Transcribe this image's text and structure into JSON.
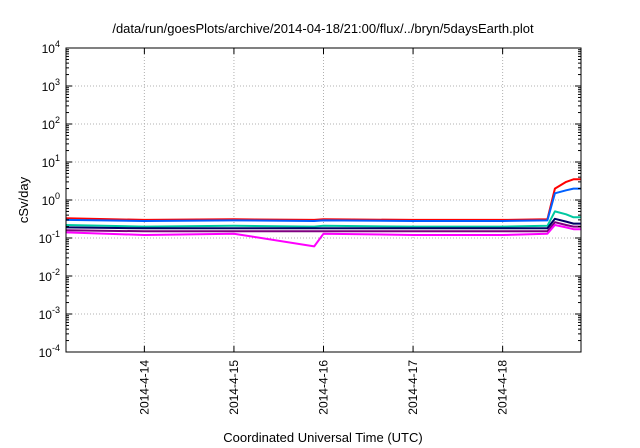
{
  "chart_data": {
    "type": "line",
    "title": "/data/run/goesPlots/archive/2014-04-18/21:00/flux/../bryn/5daysEarth.plot",
    "xlabel": "Coordinated Universal Time (UTC)",
    "ylabel": "cSv/day",
    "yscale": "log",
    "ylim": [
      0.0001,
      10000
    ],
    "y_ticks": [
      {
        "base": "10",
        "exp": "-4",
        "value": 0.0001
      },
      {
        "base": "10",
        "exp": "-3",
        "value": 0.001
      },
      {
        "base": "10",
        "exp": "-2",
        "value": 0.01
      },
      {
        "base": "10",
        "exp": "-1",
        "value": 0.1
      },
      {
        "base": "10",
        "exp": "0",
        "value": 1
      },
      {
        "base": "10",
        "exp": "1",
        "value": 10
      },
      {
        "base": "10",
        "exp": "2",
        "value": 100
      },
      {
        "base": "10",
        "exp": "3",
        "value": 1000
      },
      {
        "base": "10",
        "exp": "4",
        "value": 10000
      }
    ],
    "xlim": [
      "2014-04-13 03:00",
      "2014-04-18 21:00"
    ],
    "x_ticks": [
      {
        "label": "2014-4-14",
        "value": "2014-04-14"
      },
      {
        "label": "2014-4-15",
        "value": "2014-04-15"
      },
      {
        "label": "2014-4-16",
        "value": "2014-04-16"
      },
      {
        "label": "2014-4-17",
        "value": "2014-04-17"
      },
      {
        "label": "2014-4-18",
        "value": "2014-04-18"
      }
    ],
    "grid": true,
    "legend": "none",
    "x": [
      "2014-04-13 03:00",
      "2014-04-14 00:00",
      "2014-04-15 00:00",
      "2014-04-15 21:30",
      "2014-04-16 00:00",
      "2014-04-17 00:00",
      "2014-04-18 00:00",
      "2014-04-18 12:00",
      "2014-04-18 14:00",
      "2014-04-18 17:00",
      "2014-04-18 19:00",
      "2014-04-18 21:00"
    ],
    "series": [
      {
        "color": "#ff0000",
        "values": [
          0.33,
          0.3,
          0.31,
          0.3,
          0.31,
          0.3,
          0.3,
          0.31,
          2.0,
          3.0,
          3.5,
          3.5
        ]
      },
      {
        "color": "#0060ff",
        "values": [
          0.3,
          0.28,
          0.29,
          0.28,
          0.29,
          0.28,
          0.28,
          0.29,
          1.5,
          1.8,
          2.0,
          2.0
        ]
      },
      {
        "color": "#00c8a0",
        "values": [
          0.22,
          0.2,
          0.21,
          0.2,
          0.21,
          0.2,
          0.2,
          0.21,
          0.5,
          0.42,
          0.35,
          0.35
        ]
      },
      {
        "color": "#000066",
        "values": [
          0.19,
          0.18,
          0.18,
          0.18,
          0.18,
          0.18,
          0.18,
          0.18,
          0.32,
          0.27,
          0.24,
          0.24
        ]
      },
      {
        "color": "#800080",
        "values": [
          0.16,
          0.15,
          0.15,
          0.15,
          0.15,
          0.15,
          0.15,
          0.15,
          0.26,
          0.22,
          0.2,
          0.2
        ]
      },
      {
        "color": "#ff00ff",
        "values": [
          0.14,
          0.12,
          0.13,
          0.06,
          0.13,
          0.12,
          0.12,
          0.13,
          0.22,
          0.19,
          0.17,
          0.17
        ]
      }
    ]
  }
}
